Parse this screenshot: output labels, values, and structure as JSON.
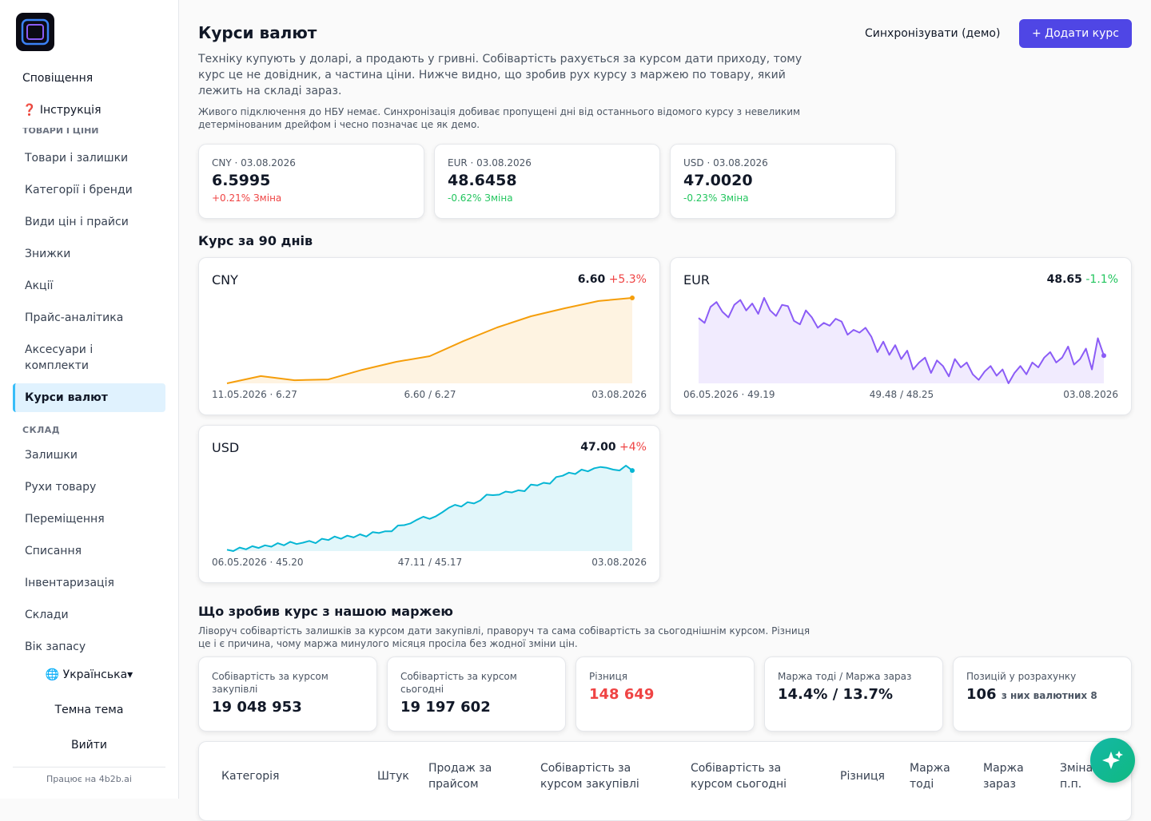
{
  "sidebar": {
    "top_items": [
      "Сповіщення",
      "❓ Інструкція"
    ],
    "section_goods": "ТОВАРИ І ЦІНИ",
    "goods_items": [
      "Товари і залишки",
      "Категорії і бренди",
      "Види цін і прайси",
      "Знижки",
      "Акції",
      "Прайс-аналітика",
      "Аксесуари і комплекти",
      "Курси валют"
    ],
    "section_warehouse": "СКЛАД",
    "warehouse_items": [
      "Залишки",
      "Рухи товару",
      "Переміщення",
      "Списання",
      "Інвентаризація",
      "Склади",
      "Вік запасу"
    ],
    "language": "🌐 Українська▾",
    "theme": "Темна тема",
    "logout": "Вийти",
    "footer": "Працює на 4b2b.ai"
  },
  "header": {
    "title": "Курси валют",
    "sync_button": "Синхронізувати (демо)",
    "add_button": "+ Додати курс",
    "description": "Техніку купують у доларі, а продають у гривні. Собівартість рахується за курсом дати приходу, тому курс це не довідник, а частина ціни. Нижче видно, що зробив рух курсу з маржею по товару, який лежить на складі зараз.",
    "note": "Живого підключення до НБУ немає. Синхронізація добиває пропущені дні від останнього відомого курсу з невеликим детермінованим дрейфом і чесно позначає це як демо."
  },
  "rate_cards": [
    {
      "label": "CNY · 03.08.2026",
      "value": "6.5995",
      "change": "+0.21% Зміна"
    },
    {
      "label": "EUR · 03.08.2026",
      "value": "48.6458",
      "change": "-0.62% Зміна"
    },
    {
      "label": "USD · 03.08.2026",
      "value": "47.0020",
      "change": "-0.23% Зміна"
    }
  ],
  "section_90": "Курс за 90 днів",
  "chart_data": [
    {
      "type": "line",
      "title": "CNY",
      "latest": "6.60",
      "change": "+5.3%",
      "start_label": "11.05.2026 · 6.27",
      "range_label": "6.60 / 6.27",
      "end_label": "03.08.2026",
      "color": "#f59e0b",
      "values": [
        6.27,
        6.298,
        6.282,
        6.285,
        6.322,
        6.353,
        6.375,
        6.433,
        6.486,
        6.529,
        6.56,
        6.588,
        6.6
      ]
    },
    {
      "type": "line",
      "title": "EUR",
      "latest": "48.65",
      "change": "-1.1%",
      "start_label": "06.05.2026 · 49.19",
      "range_label": "49.48 / 48.25",
      "end_label": "03.08.2026",
      "color": "#8b5cf6",
      "values": [
        49.19,
        49.12,
        49.35,
        49.42,
        49.28,
        49.2,
        49.38,
        49.45,
        49.3,
        49.4,
        49.25,
        49.48,
        49.3,
        49.22,
        49.38,
        49.36,
        49.15,
        49.1,
        49.3,
        49.2,
        49.05,
        49.12,
        49.08,
        49.18,
        49.14,
        48.95,
        49.02,
        48.98,
        49.05,
        48.92,
        48.7,
        48.85,
        48.66,
        48.8,
        48.6,
        48.72,
        48.45,
        48.55,
        48.62,
        48.4,
        48.58,
        48.5,
        48.35,
        48.6,
        48.48,
        48.55,
        48.38,
        48.3,
        48.42,
        48.5,
        48.36,
        48.45,
        48.25,
        48.4,
        48.5,
        48.38,
        48.55,
        48.48,
        48.62,
        48.7,
        48.55,
        48.62,
        48.78,
        48.52,
        48.6,
        48.75,
        48.45,
        48.9,
        48.65
      ]
    },
    {
      "type": "line",
      "title": "USD",
      "latest": "47.00",
      "change": "+4%",
      "start_label": "06.05.2026 · 45.20",
      "range_label": "47.11 / 45.17",
      "end_label": "03.08.2026",
      "color": "#06b6d4",
      "values": [
        45.2,
        45.17,
        45.25,
        45.21,
        45.28,
        45.24,
        45.3,
        45.27,
        45.35,
        45.3,
        45.38,
        45.33,
        45.36,
        45.4,
        45.35,
        45.45,
        45.42,
        45.5,
        45.45,
        45.52,
        45.48,
        45.55,
        45.5,
        45.6,
        45.58,
        45.62,
        45.62,
        45.75,
        45.76,
        45.8,
        45.88,
        45.95,
        45.9,
        45.96,
        46.05,
        46.15,
        46.22,
        46.18,
        46.28,
        46.25,
        46.32,
        46.45,
        46.44,
        46.45,
        46.52,
        46.5,
        46.55,
        46.53,
        46.68,
        46.66,
        46.72,
        46.7,
        46.85,
        46.88,
        46.95,
        46.92,
        47.02,
        46.98,
        47.05,
        47.08,
        47.06,
        47.02,
        47.0,
        47.11,
        47.0
      ]
    }
  ],
  "margin": {
    "title": "Що зробив курс з нашою маржею",
    "description": "Ліворуч собівартість залишків за курсом дати закупівлі, праворуч та сама собівартість за сьогоднішнім курсом. Різниця це і є причина, чому маржа минулого місяця просіла без жодної зміни цін.",
    "cards": [
      {
        "label": "Собівартість за курсом закупівлі",
        "value": "19 048 953"
      },
      {
        "label": "Собівартість за курсом сьогодні",
        "value": "19 197 602"
      },
      {
        "label": "Різниця",
        "value": "148 649"
      },
      {
        "label": "Маржа тоді / Маржа зараз",
        "value": "14.4% / 13.7%"
      },
      {
        "label": "Позицій у розрахунку",
        "value": "106",
        "sub": "з них валютних 8"
      }
    ]
  },
  "table": {
    "columns": [
      "Категорія",
      "Штук",
      "Продаж за прайсом",
      "Собівартість за курсом закупівлі",
      "Собівартість за курсом сьогодні",
      "Різниця",
      "Маржа тоді",
      "Маржа зараз",
      "Зміна п.п."
    ]
  }
}
